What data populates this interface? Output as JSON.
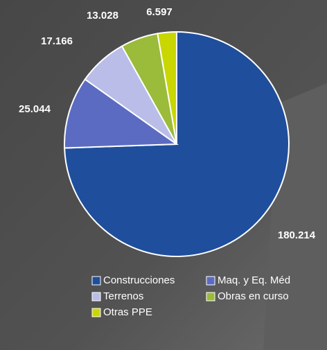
{
  "chart_data": {
    "type": "pie",
    "categories": [
      "Construcciones",
      "Maq. y Eq. Méd",
      "Terrenos",
      "Obras en curso",
      "Otras PPE"
    ],
    "values": [
      180214,
      25044,
      17166,
      13028,
      6597
    ],
    "value_labels": [
      "180.214",
      "25.044",
      "17.166",
      "13.028",
      "6.597"
    ],
    "colors": [
      "#1f4e9c",
      "#5b6bc2",
      "#b9bde8",
      "#9bbb3b",
      "#c9d600"
    ]
  }
}
